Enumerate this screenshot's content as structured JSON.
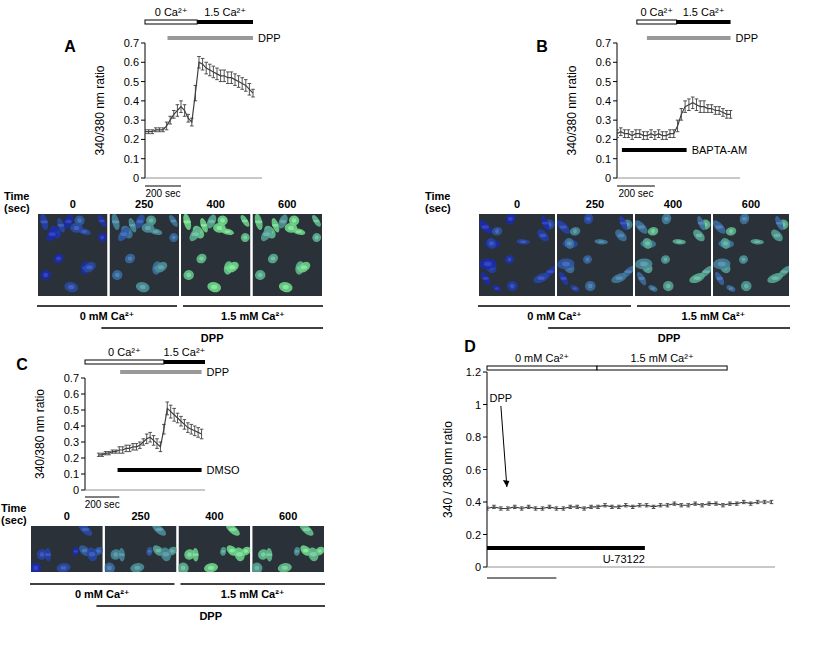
{
  "chart_data": [
    {
      "type": "line",
      "title": "A",
      "y_label": "340/380 nm ratio",
      "xlim": [
        0,
        650
      ],
      "ylim": [
        0,
        0.7
      ],
      "yticks": [
        0,
        0.1,
        0.2,
        0.3,
        0.4,
        0.5,
        0.6,
        0.7
      ],
      "tick_labels": "y",
      "grid": false,
      "color": "#404040",
      "line_style": "solid",
      "x": [
        0,
        20,
        40,
        60,
        80,
        100,
        120,
        140,
        160,
        180,
        200,
        220,
        240,
        260,
        280,
        300,
        320,
        340,
        360,
        380,
        400,
        420,
        440,
        460,
        480,
        500,
        520,
        540,
        560,
        580,
        600
      ],
      "values": [
        0.24,
        0.24,
        0.24,
        0.25,
        0.25,
        0.25,
        0.27,
        0.3,
        0.33,
        0.35,
        0.37,
        0.35,
        0.31,
        0.29,
        0.44,
        0.6,
        0.59,
        0.57,
        0.56,
        0.55,
        0.54,
        0.53,
        0.53,
        0.52,
        0.52,
        0.51,
        0.5,
        0.49,
        0.48,
        0.46,
        0.44
      ],
      "errors": [
        0.01,
        0.01,
        0.01,
        0.01,
        0.01,
        0.01,
        0.02,
        0.02,
        0.02,
        0.03,
        0.03,
        0.03,
        0.02,
        0.02,
        0.04,
        0.03,
        0.03,
        0.03,
        0.03,
        0.03,
        0.03,
        0.03,
        0.03,
        0.03,
        0.03,
        0.03,
        0.03,
        0.03,
        0.03,
        0.03,
        0.02
      ],
      "periods": [
        {
          "text": "0 Ca²⁺",
          "start": 0,
          "end": 290,
          "line_style": "double",
          "color": "#000000"
        },
        {
          "text": "1.5 Ca²⁺",
          "start": 290,
          "end": 600,
          "line_style": "solid",
          "color": "#000000"
        },
        {
          "text": "DPP",
          "start": 125,
          "end": 600,
          "line_style": "solid",
          "color": "#999999"
        }
      ],
      "scale_bar": {
        "text": "200 sec",
        "length": 200
      },
      "images": {
        "label": "Time (sec)",
        "times": [
          0,
          250,
          400,
          600
        ],
        "conditions": [
          "0 mM Ca²⁺",
          "1.5 mM Ca²⁺",
          "DPP"
        ]
      }
    },
    {
      "type": "line",
      "title": "B",
      "y_label": "340/380 nm ratio",
      "xlim": [
        0,
        650
      ],
      "ylim": [
        0,
        0.7
      ],
      "yticks": [
        0,
        0.1,
        0.2,
        0.3,
        0.4,
        0.5,
        0.6,
        0.7
      ],
      "tick_labels": "y",
      "grid": false,
      "color": "#404040",
      "line_style": "solid",
      "x": [
        0,
        20,
        40,
        60,
        80,
        100,
        120,
        140,
        160,
        180,
        200,
        220,
        240,
        260,
        280,
        300,
        320,
        340,
        360,
        380,
        400,
        420,
        440,
        460,
        480,
        500,
        520,
        540,
        560,
        580,
        600
      ],
      "values": [
        0.23,
        0.24,
        0.23,
        0.23,
        0.22,
        0.23,
        0.23,
        0.22,
        0.22,
        0.23,
        0.22,
        0.23,
        0.22,
        0.22,
        0.23,
        0.23,
        0.27,
        0.33,
        0.37,
        0.38,
        0.39,
        0.38,
        0.37,
        0.37,
        0.36,
        0.36,
        0.35,
        0.35,
        0.34,
        0.33,
        0.33
      ],
      "errors": [
        0.02,
        0.02,
        0.02,
        0.02,
        0.02,
        0.02,
        0.02,
        0.02,
        0.02,
        0.02,
        0.02,
        0.02,
        0.02,
        0.02,
        0.02,
        0.02,
        0.03,
        0.03,
        0.03,
        0.03,
        0.03,
        0.03,
        0.03,
        0.03,
        0.02,
        0.02,
        0.02,
        0.02,
        0.02,
        0.02,
        0.02
      ],
      "periods": [
        {
          "text": "0 Ca²⁺",
          "start": 105,
          "end": 315,
          "line_style": "double",
          "color": "#000000"
        },
        {
          "text": "1.5 Ca²⁺",
          "start": 315,
          "end": 600,
          "line_style": "solid",
          "color": "#000000"
        },
        {
          "text": "DPP",
          "start": 158,
          "end": 600,
          "line_style": "solid",
          "color": "#999999"
        },
        {
          "text": "BAPTA-AM",
          "start": 26,
          "end": 368,
          "line_style": "solid",
          "color": "#000000"
        }
      ],
      "scale_bar": {
        "text": "200 sec",
        "length": 200
      },
      "images": {
        "label": "Time (sec)",
        "times": [
          0,
          250,
          400,
          600
        ],
        "conditions": [
          "0 mM Ca²⁺",
          "1.5 mM Ca²⁺",
          "DPP"
        ]
      }
    },
    {
      "type": "line",
      "title": "C",
      "y_label": "340/380 nm ratio",
      "xlim": [
        0,
        700
      ],
      "ylim": [
        0,
        0.7
      ],
      "yticks": [
        0,
        0.1,
        0.2,
        0.3,
        0.4,
        0.5,
        0.6,
        0.7
      ],
      "tick_labels": "y",
      "grid": false,
      "color": "#404040",
      "line_style": "solid",
      "x": [
        80,
        100,
        120,
        140,
        160,
        180,
        200,
        220,
        240,
        260,
        280,
        300,
        320,
        340,
        360,
        380,
        400,
        420,
        440,
        460,
        480,
        500,
        520,
        540,
        560,
        580,
        600,
        620,
        640,
        660,
        680
      ],
      "values": [
        0.22,
        0.22,
        0.23,
        0.23,
        0.24,
        0.24,
        0.25,
        0.25,
        0.26,
        0.26,
        0.27,
        0.27,
        0.28,
        0.3,
        0.32,
        0.33,
        0.31,
        0.29,
        0.27,
        0.38,
        0.51,
        0.49,
        0.47,
        0.45,
        0.43,
        0.41,
        0.39,
        0.38,
        0.37,
        0.36,
        0.35
      ],
      "errors": [
        0.01,
        0.01,
        0.01,
        0.01,
        0.01,
        0.01,
        0.02,
        0.02,
        0.02,
        0.02,
        0.02,
        0.02,
        0.02,
        0.02,
        0.03,
        0.03,
        0.03,
        0.03,
        0.03,
        0.03,
        0.04,
        0.04,
        0.04,
        0.03,
        0.03,
        0.03,
        0.03,
        0.03,
        0.03,
        0.03,
        0.03
      ],
      "periods": [
        {
          "text": "0 Ca²⁺",
          "start": 0,
          "end": 460,
          "line_style": "double",
          "color": "#000000"
        },
        {
          "text": "1.5 Ca²⁺",
          "start": 460,
          "end": 700,
          "line_style": "solid",
          "color": "#000000"
        },
        {
          "text": "DPP",
          "start": 205,
          "end": 680,
          "line_style": "solid",
          "color": "#999999"
        },
        {
          "text": "DMSO",
          "start": 190,
          "end": 680,
          "line_style": "solid",
          "color": "#000000"
        }
      ],
      "scale_bar": {
        "text": "200 sec",
        "length": 200
      },
      "images": {
        "label": "Time (sec)",
        "times": [
          0,
          250,
          400,
          600
        ],
        "conditions": [
          "0 mM Ca²⁺",
          "1.5 mM Ca²⁺",
          "DPP"
        ]
      }
    },
    {
      "type": "line",
      "title": "D",
      "y_label": "340 / 380 nm ratio",
      "xlim": [
        0,
        830
      ],
      "ylim": [
        0,
        1.2
      ],
      "yticks": [
        0,
        0.2,
        0.4,
        0.6,
        0.8,
        1,
        1.2
      ],
      "tick_labels": "y",
      "grid": false,
      "color": "#404040",
      "line_style": "solid",
      "x": [
        0,
        20,
        40,
        60,
        80,
        100,
        120,
        140,
        160,
        180,
        200,
        220,
        240,
        260,
        280,
        300,
        320,
        340,
        360,
        380,
        400,
        420,
        440,
        460,
        480,
        500,
        520,
        540,
        560,
        580,
        600,
        620,
        640,
        660,
        680,
        700,
        720,
        740,
        760,
        780,
        800,
        820
      ],
      "values": [
        0.36,
        0.37,
        0.36,
        0.36,
        0.37,
        0.36,
        0.37,
        0.36,
        0.36,
        0.37,
        0.36,
        0.36,
        0.37,
        0.37,
        0.36,
        0.37,
        0.37,
        0.38,
        0.37,
        0.37,
        0.38,
        0.37,
        0.38,
        0.38,
        0.37,
        0.38,
        0.38,
        0.39,
        0.38,
        0.38,
        0.39,
        0.38,
        0.39,
        0.39,
        0.38,
        0.39,
        0.39,
        0.4,
        0.39,
        0.4,
        0.4,
        0.4
      ],
      "errors": [
        0.01,
        0.01,
        0.01,
        0.01,
        0.01,
        0.01,
        0.01,
        0.01,
        0.01,
        0.01,
        0.01,
        0.01,
        0.01,
        0.01,
        0.01,
        0.01,
        0.01,
        0.01,
        0.01,
        0.01,
        0.01,
        0.01,
        0.01,
        0.01,
        0.01,
        0.01,
        0.01,
        0.01,
        0.01,
        0.01,
        0.01,
        0.01,
        0.01,
        0.01,
        0.01,
        0.01,
        0.01,
        0.01,
        0.01,
        0.01,
        0.01,
        0.01
      ],
      "periods": [
        {
          "text": "0 mM Ca²⁺",
          "start": 0,
          "end": 317,
          "line_style": "double",
          "color": "#000000"
        },
        {
          "text": "1.5 mM Ca²⁺",
          "start": 317,
          "end": 692,
          "line_style": "double",
          "color": "#000000"
        },
        {
          "text": "U-73122",
          "start": 0,
          "end": 455,
          "line_style": "solid",
          "color": "#000000"
        }
      ],
      "annotations": [
        {
          "text": "DPP",
          "x": 40
        }
      ],
      "scale_bar": {
        "length": 200
      }
    }
  ]
}
